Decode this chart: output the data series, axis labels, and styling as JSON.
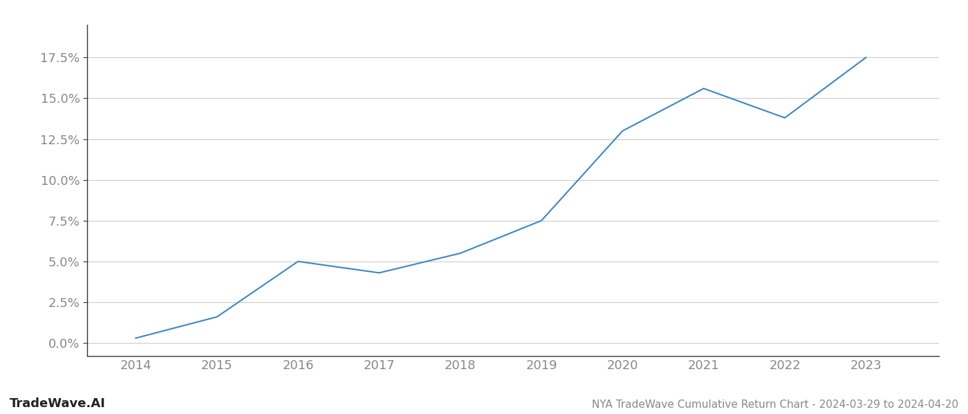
{
  "title": "NYA TradeWave Cumulative Return Chart - 2024-03-29 to 2024-04-20",
  "watermark": "TradeWave.AI",
  "x_values": [
    2014,
    2015,
    2016,
    2017,
    2018,
    2019,
    2020,
    2021,
    2022,
    2023
  ],
  "y_values": [
    0.003,
    0.016,
    0.05,
    0.043,
    0.055,
    0.075,
    0.13,
    0.156,
    0.138,
    0.175
  ],
  "line_color": "#3a86c8",
  "background_color": "#ffffff",
  "grid_color": "#cccccc",
  "y_ticks": [
    0.0,
    0.025,
    0.05,
    0.075,
    0.1,
    0.125,
    0.15,
    0.175
  ],
  "y_tick_labels": [
    "0.0%",
    "2.5%",
    "5.0%",
    "7.5%",
    "10.0%",
    "12.5%",
    "15.0%",
    "17.5%"
  ],
  "ylim": [
    -0.008,
    0.195
  ],
  "xlim": [
    2013.4,
    2023.9
  ],
  "x_tick_labels": [
    "2014",
    "2015",
    "2016",
    "2017",
    "2018",
    "2019",
    "2020",
    "2021",
    "2022",
    "2023"
  ],
  "title_fontsize": 11,
  "watermark_fontsize": 13,
  "axis_tick_fontsize": 13,
  "line_width": 1.5,
  "spine_color": "#333333",
  "tick_label_color": "#888888"
}
